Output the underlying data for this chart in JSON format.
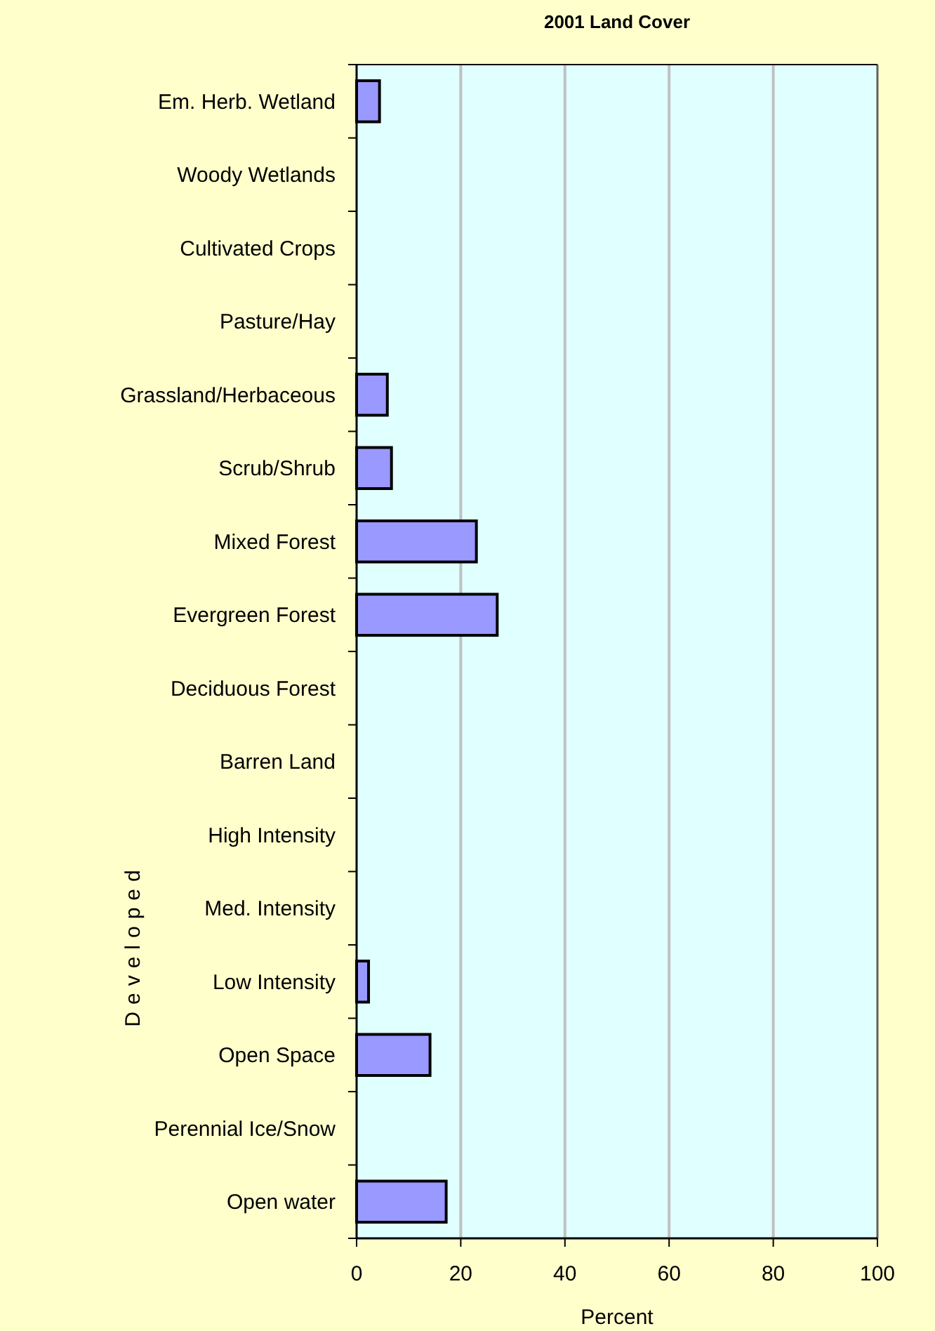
{
  "chart_data": {
    "type": "bar",
    "orientation": "horizontal",
    "title": "2001 Land Cover",
    "xlabel": "Percent",
    "categories": [
      "Em. Herb. Wetland",
      "Woody Wetlands",
      "Cultivated Crops",
      "Pasture/Hay",
      "Grassland/Herbaceous",
      "Scrub/Shrub",
      "Mixed Forest",
      "Evergreen Forest",
      "Deciduous Forest",
      "Barren Land",
      "High Intensity",
      "Med. Intensity",
      "Low Intensity",
      "Open Space",
      "Perennial Ice/Snow",
      "Open water"
    ],
    "values": [
      4.4,
      null,
      null,
      null,
      5.9,
      6.7,
      23.0,
      27.0,
      null,
      null,
      null,
      null,
      2.3,
      14.1,
      null,
      17.2
    ],
    "color": "#9999ff",
    "xlim": [
      0,
      100
    ],
    "xticks": [
      0,
      20,
      40,
      60,
      80,
      100
    ],
    "grid": "x",
    "annotations": [
      "Developed"
    ]
  }
}
